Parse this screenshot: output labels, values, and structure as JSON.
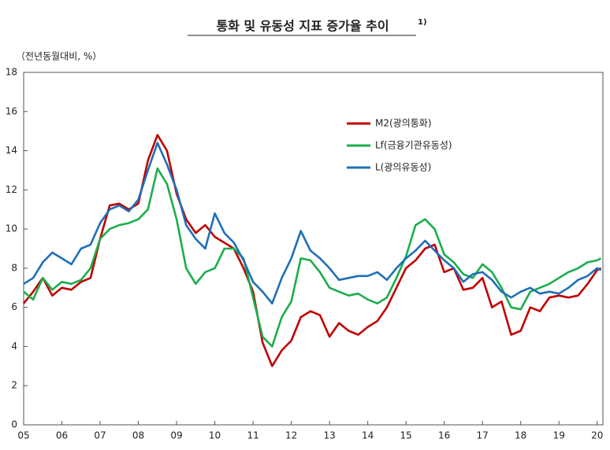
{
  "chart_data": {
    "type": "line",
    "title": "통화 및 유동성 지표 증가율 추이",
    "title_note": "1)",
    "y_label": "（전년동월대비, %）",
    "x": [
      2005,
      2005.25,
      2005.5,
      2005.75,
      2006,
      2006.25,
      2006.5,
      2006.75,
      2007,
      2007.25,
      2007.5,
      2007.75,
      2008,
      2008.25,
      2008.5,
      2008.75,
      2009,
      2009.25,
      2009.5,
      2009.75,
      2010,
      2010.25,
      2010.5,
      2010.75,
      2011,
      2011.25,
      2011.5,
      2011.75,
      2012,
      2012.25,
      2012.5,
      2012.75,
      2013,
      2013.25,
      2013.5,
      2013.75,
      2014,
      2014.25,
      2014.5,
      2014.75,
      2015,
      2015.25,
      2015.5,
      2015.75,
      2016,
      2016.25,
      2016.5,
      2016.75,
      2017,
      2017.25,
      2017.5,
      2017.75,
      2018,
      2018.25,
      2018.5,
      2018.75,
      2019,
      2019.25,
      2019.5,
      2019.75,
      2020,
      2020.1
    ],
    "series": [
      {
        "name": "M2(광의통화)",
        "color": "#c00000",
        "values": [
          6.2,
          6.8,
          7.5,
          6.6,
          7.0,
          6.9,
          7.3,
          7.5,
          9.5,
          11.2,
          11.3,
          11.0,
          11.3,
          13.5,
          14.8,
          14.0,
          11.8,
          10.5,
          9.8,
          10.2,
          9.6,
          9.3,
          9.0,
          8.0,
          6.8,
          4.2,
          3.0,
          3.8,
          4.3,
          5.5,
          5.8,
          5.6,
          4.5,
          5.2,
          4.8,
          4.6,
          5.0,
          5.3,
          6.0,
          7.0,
          8.0,
          8.4,
          9.0,
          9.2,
          7.8,
          8.0,
          6.9,
          7.0,
          7.5,
          6.0,
          6.3,
          4.6,
          4.8,
          6.0,
          5.8,
          6.5,
          6.6,
          6.5,
          6.6,
          7.2,
          7.9,
          8.0
        ]
      },
      {
        "name": "Lf(금융기관유동성)",
        "color": "#1aae4d",
        "values": [
          6.8,
          6.4,
          7.5,
          6.9,
          7.3,
          7.2,
          7.4,
          8.0,
          9.5,
          10.0,
          10.2,
          10.3,
          10.5,
          11.0,
          13.1,
          12.3,
          10.5,
          8.0,
          7.2,
          7.8,
          8.0,
          9.0,
          9.0,
          8.5,
          6.5,
          4.5,
          4.0,
          5.5,
          6.3,
          8.5,
          8.4,
          7.8,
          7.0,
          6.8,
          6.6,
          6.7,
          6.4,
          6.2,
          6.5,
          7.5,
          8.6,
          10.2,
          10.5,
          10.0,
          8.7,
          8.3,
          7.7,
          7.5,
          8.2,
          7.8,
          7.0,
          6.0,
          5.9,
          6.8,
          7.0,
          7.2,
          7.5,
          7.8,
          8.0,
          8.3,
          8.4,
          8.5
        ]
      },
      {
        "name": "L(광의유동성)",
        "color": "#1f6fb8",
        "values": [
          7.2,
          7.5,
          8.3,
          8.8,
          8.5,
          8.2,
          9.0,
          9.2,
          10.3,
          11.0,
          11.2,
          10.9,
          11.5,
          13.0,
          14.4,
          13.3,
          12.0,
          10.2,
          9.5,
          9.0,
          10.8,
          9.8,
          9.3,
          8.4,
          7.3,
          6.8,
          6.2,
          7.5,
          8.5,
          9.9,
          8.9,
          8.5,
          8.0,
          7.4,
          7.5,
          7.6,
          7.6,
          7.8,
          7.4,
          8.0,
          8.5,
          8.9,
          9.4,
          8.9,
          8.4,
          8.0,
          7.3,
          7.7,
          7.8,
          7.4,
          6.8,
          6.5,
          6.8,
          7.0,
          6.7,
          6.8,
          6.7,
          7.0,
          7.4,
          7.6,
          8.0,
          7.9
        ]
      }
    ],
    "xlim": [
      2005,
      2020.15
    ],
    "xticks": [
      {
        "value": 2005,
        "label": "05"
      },
      {
        "value": 2006,
        "label": "06"
      },
      {
        "value": 2007,
        "label": "07"
      },
      {
        "value": 2008,
        "label": "08"
      },
      {
        "value": 2009,
        "label": "09"
      },
      {
        "value": 2010,
        "label": "10"
      },
      {
        "value": 2011,
        "label": "11"
      },
      {
        "value": 2012,
        "label": "12"
      },
      {
        "value": 2013,
        "label": "13"
      },
      {
        "value": 2014,
        "label": "14"
      },
      {
        "value": 2015,
        "label": "15"
      },
      {
        "value": 2016,
        "label": "16"
      },
      {
        "value": 2017,
        "label": "17"
      },
      {
        "value": 2018,
        "label": "18"
      },
      {
        "value": 2019,
        "label": "19"
      },
      {
        "value": 2020,
        "label": "20"
      }
    ],
    "ylim": [
      0,
      18
    ],
    "yticks": [
      0,
      2,
      4,
      6,
      8,
      10,
      12,
      14,
      16,
      18
    ],
    "grid": false
  }
}
